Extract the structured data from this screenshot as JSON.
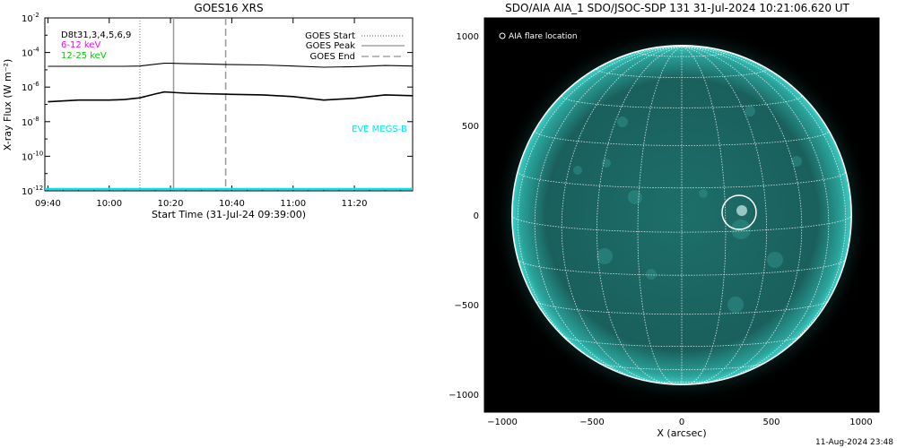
{
  "xrs_panel": {
    "title": "GOES16 XRS",
    "xlabel": "Start Time (31-Jul-24 09:39:00)",
    "ylabel": "X-ray Flux (W m⁻²)",
    "legend_left": [
      {
        "text": "D8t31,3,4,5,6,9",
        "color": "#000000"
      },
      {
        "text": "6-12 keV",
        "color": "#ff00ff"
      },
      {
        "text": "12-25 keV",
        "color": "#00cc00"
      }
    ],
    "legend_right": [
      {
        "text": "GOES Start",
        "style": "dotted"
      },
      {
        "text": "GOES Peak",
        "style": "solid"
      },
      {
        "text": "GOES End",
        "style": "dashed"
      }
    ],
    "eve_label": "EVE MEGS-B",
    "eve_color": "#00e5ee"
  },
  "aia_panel": {
    "title": "SDO/AIA AIA_1 SDO/JSOC-SDP 131 31-Jul-2024 10:21:06.620 UT",
    "legend": "AIA flare location",
    "xlabel": "X (arcsec)",
    "disk_color": "#1a6e6e",
    "limb_color": "#3fd0c8"
  },
  "footer": {
    "timestamp": "11-Aug-2024 23:48"
  },
  "chart_data": [
    {
      "type": "line",
      "title": "GOES16 XRS",
      "xlabel": "Start Time (31-Jul-24 09:39:00)",
      "ylabel": "X-ray Flux (W m^-2)",
      "yscale": "log",
      "ylim": [
        1e-12,
        0.01
      ],
      "y_ticks": [
        {
          "value": -12,
          "label": "10",
          "exp": "-12"
        },
        {
          "value": -10,
          "label": "10",
          "exp": "-10"
        },
        {
          "value": -8,
          "label": "10",
          "exp": "-8"
        },
        {
          "value": -6,
          "label": "10",
          "exp": "-6"
        },
        {
          "value": -4,
          "label": "10",
          "exp": "-4"
        },
        {
          "value": -2,
          "label": "10",
          "exp": "-2"
        }
      ],
      "xlim": [
        "09:40",
        "11:39"
      ],
      "x_ticks": [
        "09:40",
        "10:00",
        "10:20",
        "10:40",
        "11:00",
        "11:20"
      ],
      "series": [
        {
          "name": "",
          "color": "#000000",
          "x": [
            "09:40",
            "09:50",
            "10:00",
            "10:05",
            "10:10",
            "10:15",
            "10:18",
            "10:20",
            "10:25",
            "10:30",
            "10:40",
            "10:50",
            "11:00",
            "11:10",
            "11:20",
            "11:30",
            "11:39"
          ],
          "y_exp": [
            -4.8,
            -4.8,
            -4.8,
            -4.8,
            -4.78,
            -4.68,
            -4.62,
            -4.62,
            -4.65,
            -4.66,
            -4.7,
            -4.72,
            -4.78,
            -4.85,
            -4.82,
            -4.75,
            -4.78
          ]
        },
        {
          "name": "",
          "color": "#000000",
          "x": [
            "09:40",
            "09:50",
            "10:00",
            "10:05",
            "10:10",
            "10:15",
            "10:18",
            "10:20",
            "10:25",
            "10:30",
            "10:40",
            "10:50",
            "11:00",
            "11:10",
            "11:20",
            "11:30",
            "11:39"
          ],
          "y_exp": [
            -6.85,
            -6.75,
            -6.75,
            -6.72,
            -6.62,
            -6.4,
            -6.28,
            -6.3,
            -6.35,
            -6.38,
            -6.42,
            -6.45,
            -6.55,
            -6.75,
            -6.65,
            -6.45,
            -6.5
          ]
        }
      ],
      "events": {
        "goes_start": "10:10",
        "goes_peak": "10:21",
        "goes_end": "10:38"
      }
    },
    {
      "type": "scatter",
      "title": "SDO/AIA AIA_1 SDO/JSOC-SDP 131 31-Jul-2024 10:21:06.620 UT",
      "xlabel": "X (arcsec)",
      "ylabel": "",
      "xlim": [
        -1100,
        1100
      ],
      "ylim": [
        -1100,
        1100
      ],
      "x_ticks": [
        -1000,
        -500,
        0,
        500,
        1000
      ],
      "y_ticks": [
        -1000,
        -500,
        0,
        500,
        1000
      ],
      "solar_radius_arcsec": 946,
      "flare_location": {
        "x": 320,
        "y": 15,
        "radius_arcsec": 95
      }
    }
  ]
}
